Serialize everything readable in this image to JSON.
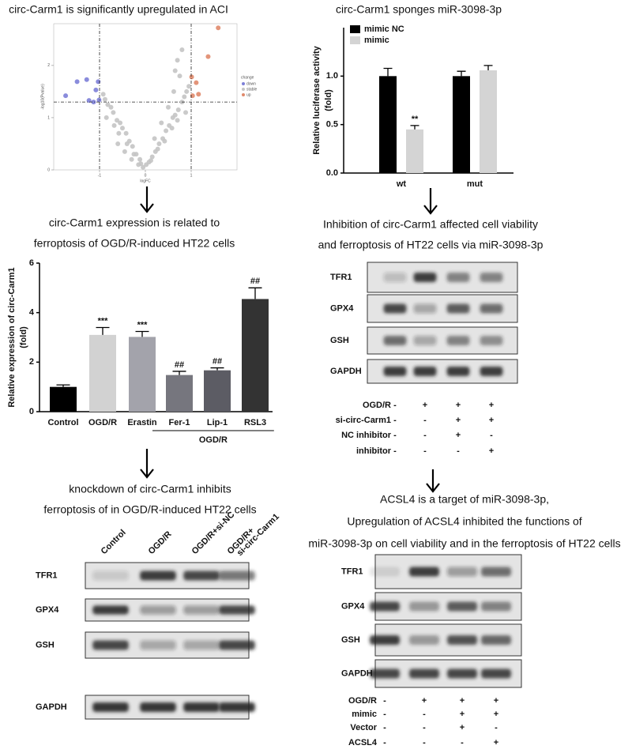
{
  "chart_data": [
    {
      "type": "scatter",
      "title": [
        "circ-Carm1 is significantly upregulated in ACI"
      ],
      "xlabel": "logFC",
      "ylabel": "-log10(Pvalue)",
      "legend_title": "change",
      "xlim": [
        -2,
        2
      ],
      "ylim": [
        0,
        2.8
      ],
      "xticks": [
        -1,
        0,
        1
      ],
      "yticks": [
        0,
        1,
        2
      ],
      "xlines": [
        -1,
        1
      ],
      "ylines": [
        1.3
      ],
      "series": [
        {
          "name": "down",
          "color": "#7d7fd8",
          "x": [
            -1.74,
            -1.49,
            -1.28,
            -1.03,
            -1.23,
            -1.13,
            -1.01,
            -1.08
          ],
          "values": [
            1.42,
            1.69,
            1.73,
            1.69,
            1.33,
            1.3,
            1.34,
            1.53
          ]
        },
        {
          "name": "stable",
          "color": "#c4c4c4",
          "x": [
            -0.05,
            0.02,
            0.08,
            -0.12,
            0.15,
            -0.2,
            0.22,
            -0.28,
            0.3,
            -0.35,
            0.38,
            -0.42,
            0.45,
            -0.5,
            0.52,
            -0.55,
            0.6,
            -0.62,
            0.65,
            -0.7,
            0.72,
            -0.75,
            0.8,
            -0.82,
            0.85,
            -0.88,
            0.9,
            -0.92,
            0.95,
            -0.1,
            0.12,
            -0.25,
            0.27,
            -0.4,
            0.42,
            -0.58,
            0.58,
            -0.68,
            0.7,
            -0.85,
            0.88,
            0.35,
            0.5,
            0.62,
            0.75,
            -0.3,
            -0.45,
            -0.6,
            0.2,
            -0.15,
            0.7,
            0.8,
            0.65
          ],
          "values": [
            0.05,
            0.1,
            0.15,
            0.2,
            0.25,
            0.3,
            0.35,
            0.45,
            0.5,
            0.55,
            0.6,
            0.7,
            0.75,
            0.8,
            0.85,
            0.9,
            1.0,
            0.95,
            1.05,
            1.1,
            1.15,
            1.2,
            1.3,
            1.25,
            1.4,
            1.35,
            1.5,
            1.45,
            1.6,
            0.12,
            0.18,
            0.3,
            0.4,
            0.5,
            0.55,
            0.7,
            0.8,
            0.85,
            0.95,
            1.0,
            1.1,
            0.9,
            1.2,
            1.5,
            1.8,
            0.2,
            0.35,
            0.5,
            0.6,
            0.1,
            2.1,
            2.3,
            1.9
          ]
        },
        {
          "name": "up",
          "color": "#e0896b",
          "x": [
            1.59,
            1.37,
            1.01,
            1.11,
            1.16,
            1.03
          ],
          "values": [
            2.72,
            2.17,
            1.78,
            1.67,
            1.45,
            1.42
          ]
        }
      ]
    },
    {
      "type": "bar",
      "title": [
        "circ-Carm1 sponges miR-3098-3p"
      ],
      "ylabel": [
        "Relative luciferase activity",
        "(fold)"
      ],
      "categories": [
        "wt",
        "mut"
      ],
      "series": [
        {
          "name": "mimic NC",
          "color": "#000000",
          "values": [
            1.0,
            1.0
          ],
          "errors": [
            0.08,
            0.05
          ],
          "significance": [
            null,
            null
          ]
        },
        {
          "name": "mimic",
          "color": "#d4d4d4",
          "values": [
            0.45,
            1.06
          ],
          "errors": [
            0.04,
            0.05
          ],
          "significance": [
            "**",
            null
          ]
        }
      ],
      "ylim": [
        0,
        1.5
      ],
      "yticks": [
        {
          "value": 0,
          "label": "0.0"
        },
        {
          "value": 0.5,
          "label": "0.5"
        },
        {
          "value": 1,
          "label": "1.0"
        }
      ]
    },
    {
      "type": "bar",
      "title": [
        "circ-Carm1 expression is related to",
        "ferroptosis of OGD/R-induced HT22 cells"
      ],
      "ylabel": [
        "Relative expression of circ-Carm1",
        "(fold)"
      ],
      "categories": [
        "Control",
        "OGD/R",
        "Erastin",
        "Fer-1",
        "Lip-1",
        "RSL3"
      ],
      "values": [
        1.0,
        3.1,
        3.02,
        1.48,
        1.67,
        4.55
      ],
      "errors": [
        0.08,
        0.3,
        0.22,
        0.15,
        0.1,
        0.45
      ],
      "colors": [
        "#000000",
        "#d2d2d2",
        "#a3a3ab",
        "#76767e",
        "#5c5c64",
        "#333333"
      ],
      "significance": [
        null,
        "***",
        "***",
        "##",
        "##",
        "##"
      ],
      "group_label": "OGD/R",
      "grouped": [
        false,
        false,
        false,
        true,
        true,
        true
      ],
      "ylim": [
        0,
        6
      ],
      "yticks": [
        0,
        2,
        4,
        6
      ]
    }
  ],
  "blots": [
    {
      "title": [
        "knockdown of circ-Carm1 inhibits",
        "ferroptosis of in OGD/R-induced HT22 cells"
      ],
      "lanes": [
        [
          "Control"
        ],
        [
          "OGD/R"
        ],
        [
          "OGD/R+si-NC"
        ],
        [
          "OGD/R+",
          "si-circ-Carm1"
        ]
      ],
      "rows": [
        "TFR1",
        "GPX4",
        "GSH",
        "GAPDH"
      ],
      "conditions": []
    },
    {
      "title": [
        "Inhibition of circ-Carm1 affected cell viability",
        "and ferroptosis of HT22 cells via miR-3098-3p"
      ],
      "lanes": [],
      "rows": [
        "TFR1",
        "GPX4",
        "GSH",
        "GAPDH"
      ],
      "conditions": [
        {
          "label": "OGD/R",
          "signs": [
            "-",
            "+",
            "+",
            "+"
          ]
        },
        {
          "label": "si-circ-Carm1",
          "signs": [
            "-",
            "-",
            "+",
            "+"
          ]
        },
        {
          "label": "NC inhibitor",
          "signs": [
            "-",
            "-",
            "+",
            "-"
          ]
        },
        {
          "label": "inhibitor",
          "signs": [
            "-",
            "-",
            "-",
            "+"
          ]
        }
      ]
    },
    {
      "title": [
        "ACSL4 is a target of miR-3098-3p,",
        "Upregulation of ACSL4 inhibited the functions of",
        "miR-3098-3p on cell viability and in the ferroptosis of HT22 cells"
      ],
      "lanes": [],
      "rows": [
        "TFR1",
        "GPX4",
        "GSH",
        "GAPDH"
      ],
      "conditions": [
        {
          "label": "OGD/R",
          "signs": [
            "-",
            "+",
            "+",
            "+"
          ]
        },
        {
          "label": "mimic",
          "signs": [
            "-",
            "-",
            "+",
            "+"
          ]
        },
        {
          "label": "Vector",
          "signs": [
            "-",
            "-",
            "+",
            "-"
          ]
        },
        {
          "label": "ACSL4",
          "signs": [
            "-",
            "-",
            "-",
            "+"
          ]
        }
      ]
    }
  ]
}
